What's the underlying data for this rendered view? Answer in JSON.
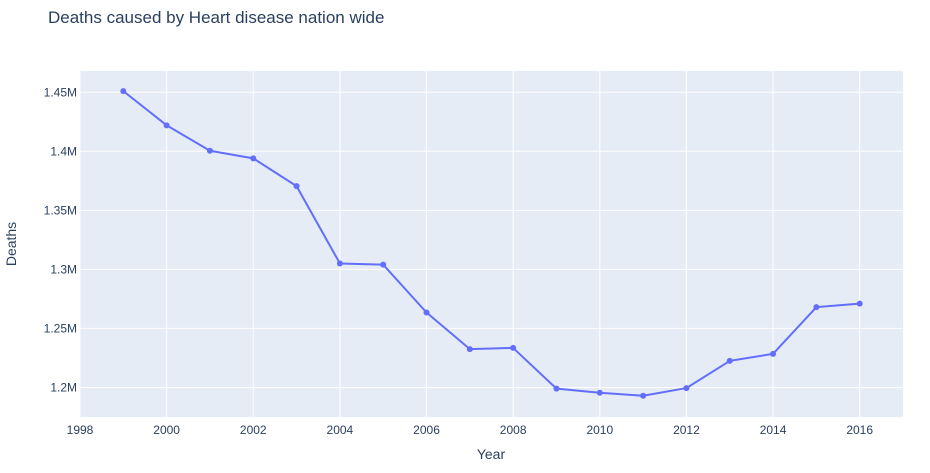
{
  "chart_data": {
    "type": "line",
    "title": "Deaths caused by Heart disease nation wide",
    "xlabel": "Year",
    "ylabel": "Deaths",
    "x": [
      1999,
      2000,
      2001,
      2002,
      2003,
      2004,
      2005,
      2006,
      2007,
      2008,
      2009,
      2010,
      2011,
      2012,
      2013,
      2014,
      2015,
      2016
    ],
    "y": [
      1451000,
      1422000,
      1400500,
      1394000,
      1370500,
      1305000,
      1304000,
      1263500,
      1232500,
      1233500,
      1199000,
      1195500,
      1193000,
      1199500,
      1222500,
      1228500,
      1268000,
      1271000
    ],
    "xlim": [
      1998,
      2017
    ],
    "ylim": [
      1175000,
      1468000
    ],
    "x_ticks": [
      1998,
      2000,
      2002,
      2004,
      2006,
      2008,
      2010,
      2012,
      2014,
      2016
    ],
    "x_tick_labels": [
      "1998",
      "2000",
      "2002",
      "2004",
      "2006",
      "2008",
      "2010",
      "2012",
      "2014",
      "2016"
    ],
    "y_ticks": [
      1200000,
      1250000,
      1300000,
      1350000,
      1400000,
      1450000
    ],
    "y_tick_labels": [
      "1.2M",
      "1.25M",
      "1.3M",
      "1.35M",
      "1.4M",
      "1.45M"
    ],
    "grid": true,
    "colors": {
      "line": "#636efa",
      "plot_bg": "#e5ecf6",
      "grid": "#ffffff"
    }
  }
}
